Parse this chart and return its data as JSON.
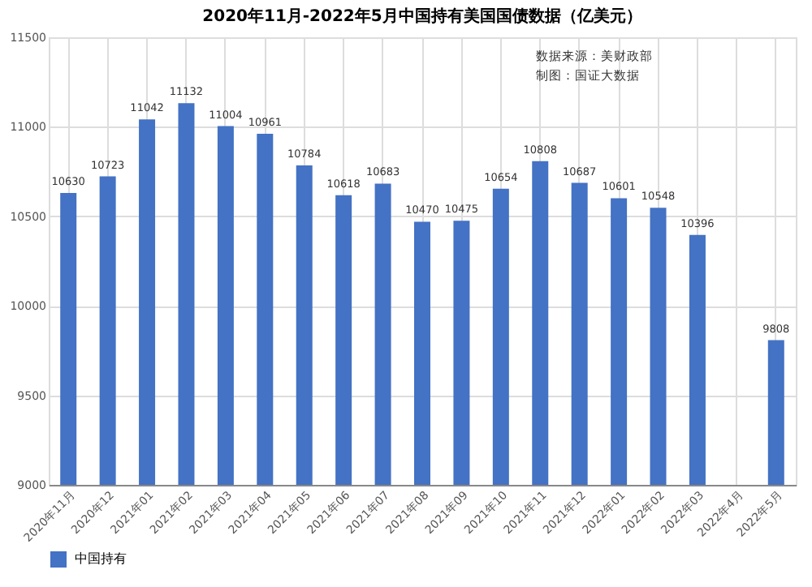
{
  "chart_data": {
    "type": "bar",
    "title": "2020年11月-2022年5月中国持有美国国债数据（亿美元）",
    "categories": [
      "2020年11月",
      "2020年12",
      "2021年01",
      "2021年02",
      "2021年03",
      "2021年04",
      "2021年05",
      "2021年06",
      "2021年07",
      "2021年08",
      "2021年09",
      "2021年10",
      "2021年11",
      "2021年12",
      "2022年01",
      "2022年02",
      "2022年03",
      "2022年4月",
      "2022年5月"
    ],
    "series": [
      {
        "name": "中国持有",
        "color": "#4472c4",
        "values": [
          10630,
          10723,
          11042,
          11132,
          11004,
          10961,
          10784,
          10618,
          10683,
          10470,
          10475,
          10654,
          10808,
          10687,
          10601,
          10548,
          10396,
          null,
          9808
        ]
      }
    ],
    "ylim": [
      9000,
      11500
    ],
    "yticks": [
      9000,
      9500,
      10000,
      10500,
      11000,
      11500
    ],
    "grid": true,
    "legend": "bottom",
    "data_labels": true,
    "annotations": [
      "数据来源：美财政部",
      "制图：国证大数据"
    ]
  }
}
